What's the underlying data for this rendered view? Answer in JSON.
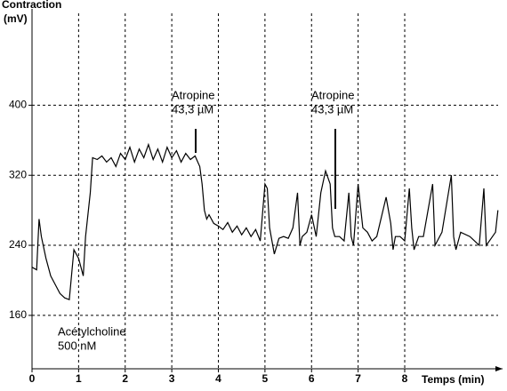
{
  "chart_data": {
    "type": "line",
    "y_label": [
      "Contraction",
      "(mV)"
    ],
    "x_label": "Temps (min)",
    "annotations": [
      {
        "lines": [
          "Atropine",
          "43,3 µM"
        ]
      },
      {
        "lines": [
          "Atropine",
          "43,3 µM"
        ]
      },
      {
        "lines": [
          "Acétylcholine",
          "500 nM"
        ]
      }
    ],
    "xlim": [
      0,
      10.1
    ],
    "xticks": [
      0,
      1,
      2,
      3,
      4,
      5,
      6,
      7,
      8
    ],
    "ylim": [
      99,
      510
    ],
    "yticks": [
      160,
      240,
      320,
      400
    ],
    "grid": true,
    "series": [
      {
        "color": "#000000",
        "x": [
          0.0,
          0.1,
          0.15,
          0.2,
          0.3,
          0.4,
          0.5,
          0.6,
          0.7,
          0.8,
          0.9,
          1.0,
          1.1,
          1.15,
          1.25,
          1.3,
          1.4,
          1.5,
          1.6,
          1.7,
          1.8,
          1.9,
          2.0,
          2.1,
          2.2,
          2.3,
          2.4,
          2.5,
          2.6,
          2.7,
          2.8,
          2.9,
          3.0,
          3.1,
          3.2,
          3.3,
          3.4,
          3.5,
          3.6,
          3.65,
          3.7,
          3.75,
          3.8,
          3.9,
          4.0,
          4.1,
          4.2,
          4.3,
          4.4,
          4.5,
          4.6,
          4.7,
          4.8,
          4.9,
          5.0,
          5.05,
          5.1,
          5.2,
          5.3,
          5.4,
          5.5,
          5.6,
          5.7,
          5.75,
          5.8,
          5.9,
          6.0,
          6.1,
          6.2,
          6.3,
          6.4,
          6.45,
          6.5,
          6.6,
          6.7,
          6.8,
          6.85,
          6.9,
          7.0,
          7.1,
          7.2,
          7.3,
          7.4,
          7.6,
          7.7,
          7.75,
          7.8,
          7.9,
          8.0,
          8.1,
          8.15,
          8.2,
          8.3,
          8.4,
          8.6,
          8.65,
          8.7,
          8.8,
          9.0,
          9.05,
          9.1,
          9.2,
          9.4,
          9.6,
          9.7,
          9.75,
          9.95,
          10.0
        ],
        "values": [
          215,
          212,
          270,
          250,
          225,
          205,
          195,
          185,
          180,
          178,
          235,
          225,
          205,
          250,
          300,
          340,
          338,
          342,
          335,
          340,
          330,
          345,
          338,
          352,
          335,
          350,
          340,
          355,
          338,
          350,
          335,
          352,
          340,
          348,
          335,
          345,
          338,
          342,
          330,
          310,
          280,
          270,
          275,
          265,
          262,
          258,
          266,
          255,
          262,
          252,
          260,
          250,
          258,
          245,
          310,
          305,
          260,
          230,
          248,
          250,
          248,
          260,
          300,
          240,
          250,
          255,
          275,
          250,
          300,
          325,
          310,
          260,
          250,
          250,
          245,
          300,
          250,
          240,
          310,
          260,
          255,
          245,
          250,
          295,
          265,
          235,
          250,
          250,
          245,
          305,
          260,
          235,
          250,
          250,
          310,
          240,
          245,
          255,
          320,
          250,
          235,
          255,
          250,
          240,
          305,
          240,
          255,
          280
        ]
      }
    ]
  }
}
